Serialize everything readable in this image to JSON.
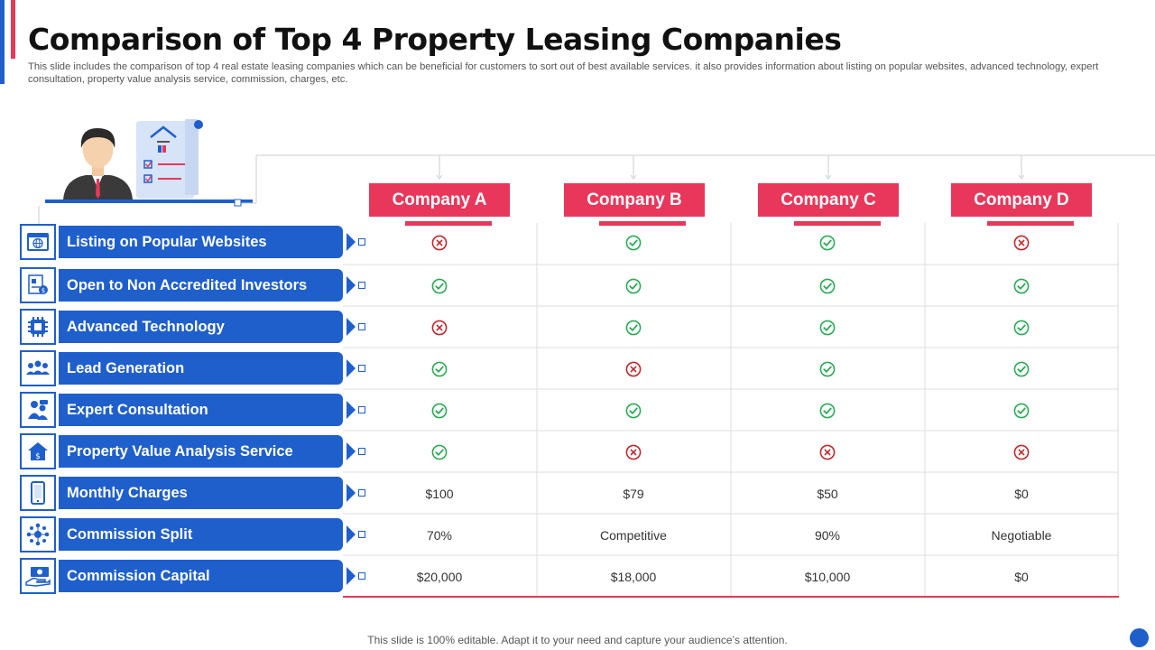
{
  "header": {
    "title": "Comparison of Top 4 Property Leasing Companies",
    "subtitle": "This slide includes the comparison of top 4 real estate leasing companies which can be beneficial for customers to sort out of best available services. it also provides information about listing on popular websites, advanced technology, expert consultation, property value analysis service, commission, charges, etc."
  },
  "colors": {
    "primary": "#1f5fcc",
    "accent": "#e8375a",
    "check": "#2eaa56",
    "cross": "#c0282d"
  },
  "companies": [
    "Company A",
    "Company B",
    "Company C",
    "Company D"
  ],
  "rows": [
    {
      "label": "Listing on Popular Websites",
      "icon": "website-icon",
      "values": [
        "cross",
        "check",
        "check",
        "cross"
      ]
    },
    {
      "label": "Open to Non Accredited Investors",
      "icon": "investor-document-icon",
      "values": [
        "check",
        "check",
        "check",
        "check"
      ]
    },
    {
      "label": "Advanced Technology",
      "icon": "chip-icon",
      "values": [
        "cross",
        "check",
        "check",
        "check"
      ]
    },
    {
      "label": "Lead Generation",
      "icon": "people-group-icon",
      "values": [
        "check",
        "cross",
        "check",
        "check"
      ]
    },
    {
      "label": "Expert Consultation",
      "icon": "consultation-icon",
      "values": [
        "check",
        "check",
        "check",
        "check"
      ]
    },
    {
      "label": "Property Value Analysis Service",
      "icon": "house-dollar-icon",
      "values": [
        "check",
        "cross",
        "cross",
        "cross"
      ]
    },
    {
      "label": "Monthly Charges",
      "icon": "mobile-icon",
      "values": [
        "$100",
        "$79",
        "$50",
        "$0"
      ]
    },
    {
      "label": "Commission Split",
      "icon": "network-icon",
      "values": [
        "70%",
        "Competitive",
        "90%",
        "Negotiable"
      ]
    },
    {
      "label": "Commission Capital",
      "icon": "money-hand-icon",
      "values": [
        "$20,000",
        "$18,000",
        "$10,000",
        "$0"
      ]
    }
  ],
  "footer": {
    "text": "This slide is 100% editable. Adapt it to your need and capture your audience’s attention."
  }
}
